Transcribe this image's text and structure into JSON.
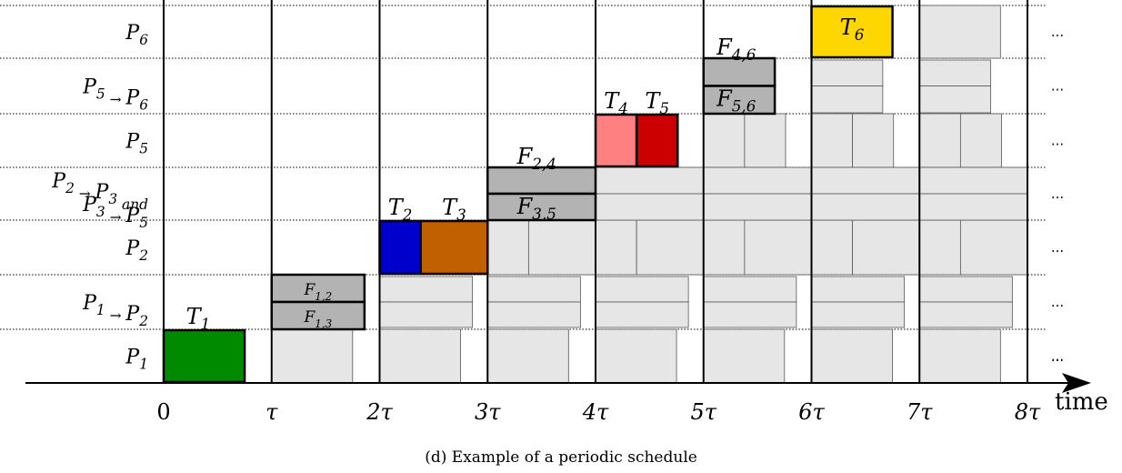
{
  "diagram": {
    "caption": "(d) Example of a periodic schedule",
    "time_label": "time",
    "continuation": "...",
    "tick_labels": [
      "0",
      "τ",
      "2τ",
      "3τ",
      "4τ",
      "5τ",
      "6τ",
      "7τ",
      "8τ"
    ],
    "rows": [
      {
        "id": "P6",
        "lines": [
          [
            "P",
            "6"
          ]
        ]
      },
      {
        "id": "P5toP6",
        "lines": [
          [
            "P",
            "5",
            " → ",
            "P",
            "6"
          ]
        ]
      },
      {
        "id": "P5",
        "lines": [
          [
            "P",
            "5"
          ]
        ]
      },
      {
        "id": "P2P3P3P5",
        "lines": [
          [
            "P",
            "2",
            " → ",
            "P",
            "3",
            " and"
          ],
          [
            "P",
            "3",
            " → ",
            "P",
            "5"
          ]
        ]
      },
      {
        "id": "P2",
        "lines": [
          [
            "P",
            "2"
          ]
        ]
      },
      {
        "id": "P1toP2",
        "lines": [
          [
            "P",
            "1",
            " → ",
            "P",
            "2"
          ]
        ]
      },
      {
        "id": "P1",
        "lines": [
          [
            "P",
            "1"
          ]
        ]
      }
    ],
    "tasks": [
      {
        "label": "T",
        "sub": "1",
        "period": 0,
        "row": "P1",
        "start": 0.0,
        "end": 0.75,
        "color": "#008a00"
      },
      {
        "label": "T",
        "sub": "2",
        "period": 2,
        "row": "P2",
        "start": 2.0,
        "end": 2.38,
        "color": "#0000cc"
      },
      {
        "label": "T",
        "sub": "3",
        "period": 2,
        "row": "P2",
        "start": 2.38,
        "end": 3.0,
        "color": "#c06000"
      },
      {
        "label": "T",
        "sub": "4",
        "period": 4,
        "row": "P5",
        "start": 4.0,
        "end": 4.38,
        "color": "#ff8080"
      },
      {
        "label": "T",
        "sub": "5",
        "period": 4,
        "row": "P5",
        "start": 4.38,
        "end": 4.76,
        "color": "#cc0000"
      },
      {
        "label": "T",
        "sub": "6",
        "period": 6,
        "row": "P6",
        "start": 6.0,
        "end": 6.75,
        "color": "#ffd700"
      }
    ],
    "transfers": [
      {
        "label": "F",
        "sub": "1,2",
        "row": "P1toP2",
        "half": "top",
        "start": 1.0,
        "end": 1.86
      },
      {
        "label": "F",
        "sub": "1,3",
        "row": "P1toP2",
        "half": "bottom",
        "start": 1.0,
        "end": 1.86
      },
      {
        "label": "F",
        "sub": "2,4",
        "row": "P2P3P3P5",
        "half": "top",
        "start": 3.0,
        "end": 4.0
      },
      {
        "label": "F",
        "sub": "3,5",
        "row": "P2P3P3P5",
        "half": "bottom",
        "start": 3.0,
        "end": 4.0
      },
      {
        "label": "F",
        "sub": "4,6",
        "row": "P5toP6",
        "half": "top",
        "start": 5.0,
        "end": 5.66
      },
      {
        "label": "F",
        "sub": "5,6",
        "row": "P5toP6",
        "half": "bottom",
        "start": 5.0,
        "end": 5.66
      }
    ],
    "colors": {
      "ghost_fill": "#e6e6e6",
      "ghost_stroke": "#555555",
      "transfer_fill": "#b3b3b3",
      "line": "#000000"
    }
  }
}
